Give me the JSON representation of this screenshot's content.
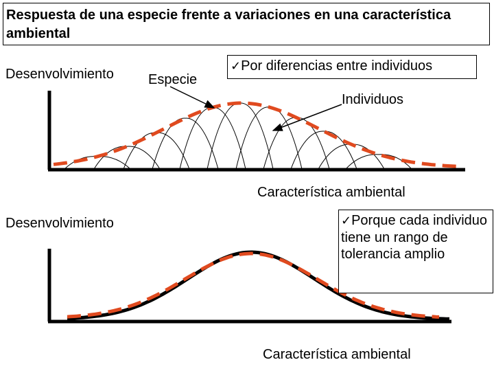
{
  "title": "Respuesta de una especie frente a variaciones en una característica ambiental",
  "top_panel": {
    "y_label": "Desenvolvimiento",
    "species_label": "Especie",
    "individuals_label": "Individuos",
    "note_check_icon": "checkmark-icon",
    "note": "Por diferencias entre individuos",
    "x_label": "Característica ambiental"
  },
  "bottom_panel": {
    "y_label": "Desenvolvimiento",
    "note_check_icon": "checkmark-icon",
    "note": "Porque cada individuo tiene un rango de tolerancia amplio",
    "x_label": "Característica ambiental"
  },
  "colors": {
    "species_curve": "#e04a1f",
    "axes": "#000000",
    "individual_curves": "#000000"
  }
}
